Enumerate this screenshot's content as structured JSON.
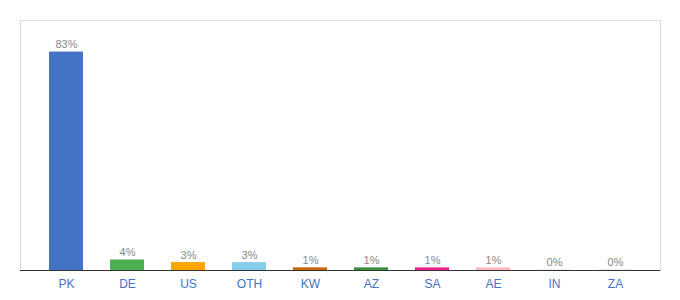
{
  "chart_data": {
    "type": "bar",
    "categories": [
      "PK",
      "DE",
      "US",
      "OTH",
      "KW",
      "AZ",
      "SA",
      "AE",
      "IN",
      "ZA"
    ],
    "values": [
      83,
      4,
      3,
      3,
      1,
      1,
      1,
      1,
      0.2,
      0.2
    ],
    "value_labels": [
      "83%",
      "4%",
      "3%",
      "3%",
      "1%",
      "1%",
      "1%",
      "1%",
      "0%",
      "0%"
    ],
    "colors": [
      "#4472C4",
      "#4CAF50",
      "#FFA500",
      "#87CEEB",
      "#CC6600",
      "#388E3C",
      "#E91E8C",
      "#FFB6C1",
      "#DDDDDD",
      "#DDDDDD"
    ],
    "ylim": [
      0,
      95
    ],
    "data_labels": true,
    "tick_labels": "x",
    "grid": false
  }
}
